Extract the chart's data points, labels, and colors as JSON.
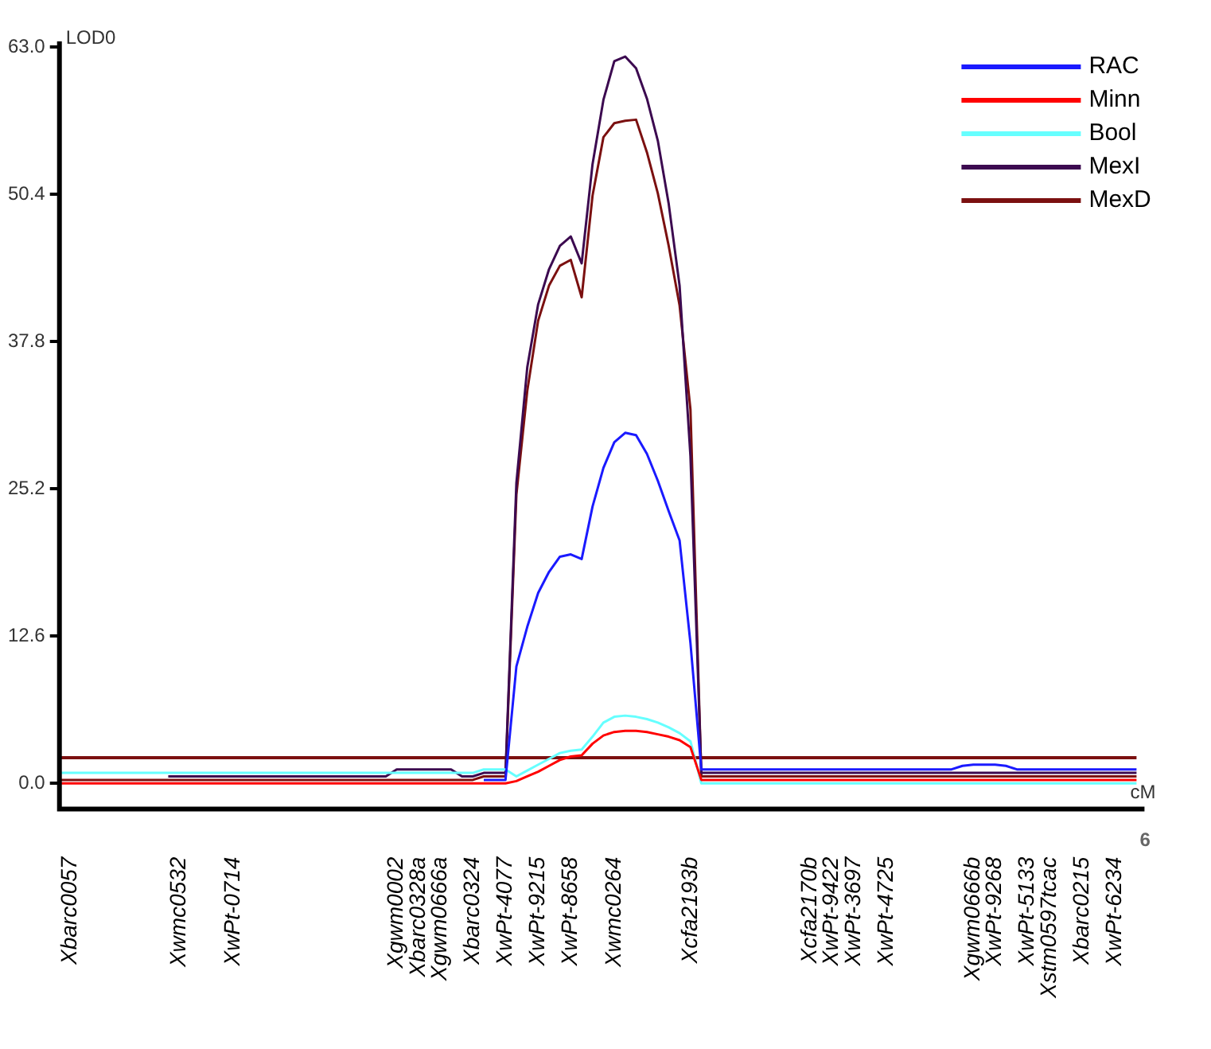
{
  "chart_data": {
    "type": "line",
    "ylabel": "LOD0",
    "xlabel": "cM",
    "annotations": [
      "6"
    ],
    "categories": [
      null,
      "Xbarc0057",
      null,
      null,
      null,
      null,
      null,
      null,
      null,
      null,
      null,
      "Xwmc0532",
      null,
      null,
      null,
      null,
      "XwPt-0714",
      null,
      null,
      null,
      null,
      null,
      null,
      null,
      null,
      null,
      null,
      null,
      null,
      null,
      null,
      "Xgwm0002",
      null,
      "Xbarc0328a",
      null,
      "Xgwm0666a",
      null,
      null,
      "Xbarc0324",
      null,
      null,
      "XwPt-4077",
      null,
      null,
      "XwPt-9215",
      null,
      null,
      "XwPt-8658",
      null,
      null,
      null,
      "Xwmc0264",
      null,
      null,
      null,
      null,
      null,
      null,
      "Xcfa2193b",
      null,
      null,
      null,
      null,
      null,
      null,
      null,
      null,
      null,
      null,
      "Xcfa2170b",
      null,
      "XwPt-9422",
      null,
      "XwPt-3697",
      null,
      null,
      "XwPt-4725",
      null,
      null,
      null,
      null,
      null,
      null,
      null,
      "Xgwm0666b",
      null,
      "XwPt-9268",
      null,
      null,
      "XwPt-5133",
      null,
      "Xstm0597tcac",
      null,
      null,
      "Xbarc0215",
      null,
      null,
      "XwPt-6234",
      null,
      null
    ],
    "series": [
      {
        "name": "RAC",
        "color": "#1a1aff",
        "values": [
          null,
          null,
          null,
          null,
          null,
          null,
          null,
          null,
          null,
          null,
          null,
          null,
          null,
          null,
          null,
          null,
          null,
          null,
          null,
          null,
          null,
          null,
          null,
          null,
          null,
          null,
          null,
          null,
          null,
          null,
          null,
          null,
          null,
          null,
          null,
          null,
          null,
          null,
          null,
          0.3,
          0.3,
          0.3,
          10,
          13.4,
          16.3,
          18.1,
          19.4,
          19.6,
          19.2,
          23.7,
          27,
          29.2,
          30,
          29.8,
          28.2,
          25.9,
          23.3,
          20.8,
          12,
          1.2,
          1.2,
          1.2,
          1.2,
          1.2,
          1.2,
          1.2,
          1.2,
          1.2,
          1.2,
          1.2,
          1.2,
          1.2,
          1.2,
          1.2,
          1.2,
          1.2,
          1.2,
          1.2,
          1.2,
          1.2,
          1.2,
          1.2,
          1.2,
          1.5,
          1.6,
          1.6,
          1.6,
          1.5,
          1.2,
          1.2,
          1.2,
          1.2,
          1.2,
          1.2,
          1.2,
          1.2,
          1.2,
          1.2,
          1.2,
          1.2
        ]
      },
      {
        "name": "Minn",
        "color": "#ff0000",
        "values": [
          0,
          0,
          0,
          0,
          0,
          0,
          0,
          0,
          0,
          0,
          0,
          0,
          0,
          0,
          0,
          0,
          0,
          0,
          0,
          0,
          0,
          0,
          0,
          0,
          0,
          0,
          0,
          0,
          0,
          0,
          0,
          0,
          0,
          0,
          0,
          0,
          0,
          0,
          0,
          0,
          0,
          0,
          0.2,
          0.6,
          1,
          1.5,
          2,
          2.3,
          2.4,
          3.4,
          4.1,
          4.4,
          4.5,
          4.5,
          4.4,
          4.2,
          4,
          3.7,
          3.1,
          0.3,
          0.3,
          0.3,
          0.3,
          0.3,
          0.3,
          0.3,
          0.3,
          0.3,
          0.3,
          0.3,
          0.3,
          0.3,
          0.3,
          0.3,
          0.3,
          0.3,
          0.3,
          0.3,
          0.3,
          0.3,
          0.3,
          0.3,
          0.3,
          0.3,
          0.3,
          0.3,
          0.3,
          0.3,
          0.3,
          0.3,
          0.3,
          0.3,
          0.3,
          0.3,
          0.3,
          0.3,
          0.3,
          0.3,
          0.3,
          0.3
        ]
      },
      {
        "name": "Bool",
        "color": "#66ffff",
        "values": [
          0.9,
          0.9,
          0.9,
          0.9,
          0.9,
          0.9,
          0.9,
          0.9,
          0.9,
          0.9,
          0.9,
          0.9,
          0.9,
          0.9,
          0.9,
          0.9,
          0.9,
          0.9,
          0.9,
          0.9,
          0.9,
          0.9,
          0.9,
          0.9,
          0.9,
          0.9,
          0.9,
          0.9,
          0.9,
          0.9,
          0.9,
          0.9,
          0.9,
          0.9,
          0.9,
          0.9,
          0.9,
          0.9,
          0.9,
          1.2,
          1.2,
          1.2,
          0.6,
          1.1,
          1.6,
          2.1,
          2.6,
          2.8,
          2.9,
          4,
          5.2,
          5.7,
          5.8,
          5.7,
          5.5,
          5.2,
          4.8,
          4.3,
          3.6,
          0,
          0,
          0,
          0,
          0,
          0,
          0,
          0,
          0,
          0,
          0,
          0,
          0,
          0,
          0,
          0,
          0,
          0,
          0,
          0,
          0,
          0,
          0,
          0,
          0,
          0,
          0,
          0,
          0,
          0,
          0,
          0,
          0,
          0,
          0,
          0,
          0,
          0,
          0,
          0,
          0
        ]
      },
      {
        "name": "MexI",
        "color": "#3c0a50",
        "values": [
          null,
          null,
          null,
          null,
          null,
          null,
          null,
          null,
          null,
          null,
          0.6,
          0.6,
          0.6,
          0.6,
          0.6,
          0.6,
          0.6,
          0.6,
          0.6,
          0.6,
          0.6,
          0.6,
          0.6,
          0.6,
          0.6,
          0.6,
          0.6,
          0.6,
          0.6,
          0.6,
          0.6,
          1.2,
          1.2,
          1.2,
          1.2,
          1.2,
          1.2,
          0.6,
          0.6,
          0.9,
          0.9,
          0.9,
          25.7,
          35.6,
          41,
          44,
          46,
          46.8,
          44.5,
          53,
          58.5,
          61.8,
          62.2,
          61.2,
          58.6,
          55,
          49.6,
          42.6,
          28,
          0.9,
          0.9,
          0.9,
          0.9,
          0.9,
          0.9,
          0.9,
          0.9,
          0.9,
          0.9,
          0.9,
          0.9,
          0.9,
          0.9,
          0.9,
          0.9,
          0.9,
          0.9,
          0.9,
          0.9,
          0.9,
          0.9,
          0.9,
          0.9,
          0.9,
          0.9,
          0.9,
          0.9,
          0.9,
          0.9,
          0.9,
          0.9,
          0.9,
          0.9,
          0.9,
          0.9,
          0.9,
          0.9,
          0.9,
          0.9,
          0.9
        ]
      },
      {
        "name": "MexD",
        "color": "#7b1010",
        "values": [
          0.3,
          0.3,
          0.3,
          0.3,
          0.3,
          0.3,
          0.3,
          0.3,
          0.3,
          0.3,
          0.3,
          0.3,
          0.3,
          0.3,
          0.3,
          0.3,
          0.3,
          0.3,
          0.3,
          0.3,
          0.3,
          0.3,
          0.3,
          0.3,
          0.3,
          0.3,
          0.3,
          0.3,
          0.3,
          0.3,
          0.3,
          0.3,
          0.3,
          0.3,
          0.3,
          0.3,
          0.3,
          0.3,
          0.3,
          0.6,
          0.6,
          0.6,
          24.7,
          33.6,
          39.6,
          42.6,
          44.3,
          44.8,
          41.6,
          50.3,
          55.3,
          56.5,
          56.7,
          56.8,
          54,
          50.5,
          46,
          40.9,
          32,
          0.6,
          0.6,
          0.6,
          0.6,
          0.6,
          0.6,
          0.6,
          0.6,
          0.6,
          0.6,
          0.6,
          0.6,
          0.6,
          0.6,
          0.6,
          0.6,
          0.6,
          0.6,
          0.6,
          0.6,
          0.6,
          0.6,
          0.6,
          0.6,
          0.6,
          0.6,
          0.6,
          0.6,
          0.6,
          0.6,
          0.6,
          0.6,
          0.6,
          0.6,
          0.6,
          0.6,
          0.6,
          0.6,
          0.6,
          0.6,
          0.6
        ]
      }
    ],
    "ylim": [
      -2.2,
      63.5
    ],
    "yticks": [
      {
        "value": 0,
        "label": "0.0"
      },
      {
        "value": 12.6,
        "label": "12.6"
      },
      {
        "value": 25.2,
        "label": "25.2"
      },
      {
        "value": 37.8,
        "label": "37.8"
      },
      {
        "value": 50.4,
        "label": "50.4"
      },
      {
        "value": 63,
        "label": "63.0"
      }
    ],
    "ref_lines": [
      {
        "axis": "y",
        "value": 2.2,
        "color": "#7b1010"
      }
    ],
    "grid": false,
    "legend": "top right",
    "marker": "none",
    "line_style": "solid"
  }
}
